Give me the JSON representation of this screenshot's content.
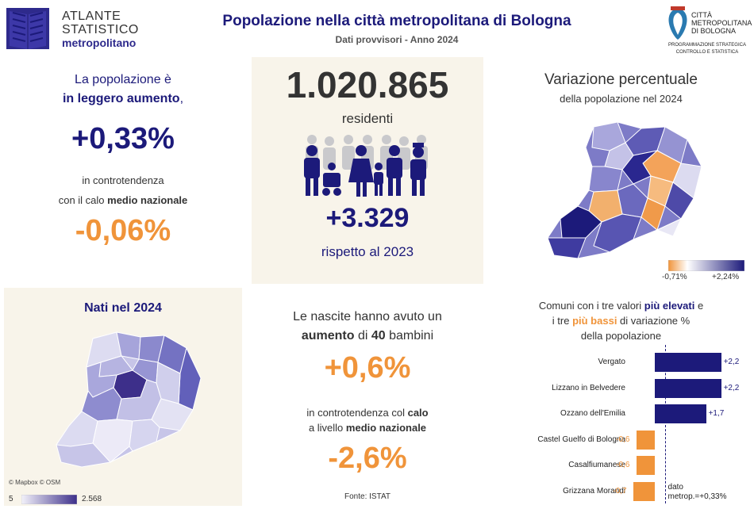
{
  "header": {
    "logo_line1": "ATLANTE",
    "logo_line2": "STATISTICO",
    "logo_line3": "metropolitano",
    "title": "Popolazione nella città metropolitana di Bologna",
    "subtitle": "Dati provvisori - Anno 2024",
    "right_logo_line1": "CITTÀ",
    "right_logo_line2": "METROPOLITANA",
    "right_logo_line3": "DI BOLOGNA",
    "right_logo_line4": "PROGRAMMAZIONE STRATEGICA",
    "right_logo_line5": "CONTROLLO E STATISTICA"
  },
  "left_top": {
    "line1": "La popolazione è",
    "line2_bold": "in leggero aumento",
    "line2_end": ",",
    "value": "+0,33%",
    "line3": "in controtendenza",
    "line4_start": "con il calo ",
    "line4_bold": "medio nazionale",
    "national_value": "-0,06%"
  },
  "mid_top": {
    "residents": "1.020.865",
    "residents_label": "residenti",
    "delta": "+3.329",
    "delta_label": "rispetto al 2023"
  },
  "right_top": {
    "title": "Variazione percentuale",
    "subtitle": "della popolazione nel 2024",
    "legend_min": "-0,71%",
    "legend_max": "+2,24%"
  },
  "left_bot": {
    "title": "Nati nel 2024",
    "credits": "© Mapbox © OSM",
    "legend_min": "5",
    "legend_max": "2.568"
  },
  "mid_bot": {
    "line1": "Le nascite hanno avuto un",
    "line2_bold1": "aumento",
    "line2_mid": " di ",
    "line2_bold2": "40",
    "line2_end": " bambini",
    "value": "+0,6%",
    "line3_start": "in controtendenza col ",
    "line3_bold": "calo",
    "line4_start": "a livello ",
    "line4_bold": "medio nazionale",
    "national_value": "-2,6%",
    "source": "Fonte: ISTAT"
  },
  "right_bot": {
    "title1_start": "Comuni con i tre valori ",
    "title1_bold": "più elevati",
    "title1_end": " e",
    "title2_start": "i tre ",
    "title2_bold": "più bassi",
    "title2_end": " di variazione %",
    "title3": "della popolazione",
    "ref_line1": "dato",
    "ref_line2": "metrop.=+0,33%"
  },
  "chart_data": {
    "type": "bar",
    "orientation": "horizontal",
    "categories": [
      "Vergato",
      "Lizzano in Belvedere",
      "Ozzano dell'Emilia",
      "Castel Guelfo di Bologna",
      "Casalfiumanese",
      "Grizzana Morandi"
    ],
    "values": [
      2.2,
      2.2,
      1.7,
      -0.6,
      -0.6,
      -0.7
    ],
    "value_labels": [
      "+2,2",
      "+2,2",
      "+1,7",
      "-0,6",
      "-0,6",
      "-0,7"
    ],
    "reference_value": 0.33,
    "colors": {
      "positive": "#1c1a7a",
      "negative": "#f0943a"
    }
  },
  "colors": {
    "navy": "#1c1a7a",
    "orange": "#f0943a",
    "panel": "#f8f4ea"
  }
}
